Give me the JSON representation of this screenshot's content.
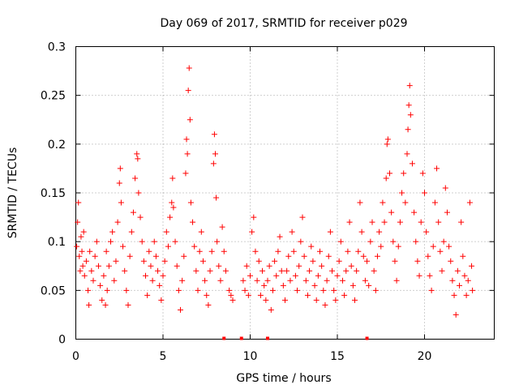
{
  "chart_data": {
    "type": "scatter",
    "title": "Day 069 of 2017, SRMTID for receiver p029",
    "xlabel": "GPS time / hours",
    "ylabel": "SRMTID / TECUs",
    "xlim": [
      0,
      24
    ],
    "ylim": [
      0,
      0.3
    ],
    "x_ticks": [
      0,
      5,
      10,
      15,
      20
    ],
    "x_tick_labels": [
      "0",
      "5",
      "10",
      "15",
      "20"
    ],
    "y_ticks": [
      0,
      0.05,
      0.1,
      0.15,
      0.2,
      0.25,
      0.3
    ],
    "y_tick_labels": [
      "0",
      "0.05",
      "0.1",
      "0.15",
      "0.2",
      "0.25",
      "0.3"
    ],
    "grid": true,
    "marker": "+",
    "color": "#ff0000",
    "series": [
      {
        "name": "SRMTID",
        "points": [
          [
            0.05,
            0.095
          ],
          [
            0.1,
            0.12
          ],
          [
            0.15,
            0.14
          ],
          [
            0.2,
            0.085
          ],
          [
            0.25,
            0.07
          ],
          [
            0.3,
            0.105
          ],
          [
            0.35,
            0.09
          ],
          [
            0.4,
            0.075
          ],
          [
            0.45,
            0.11
          ],
          [
            0.5,
            0.065
          ],
          [
            0.6,
            0.08
          ],
          [
            0.7,
            0.05
          ],
          [
            0.75,
            0.035
          ],
          [
            0.8,
            0.09
          ],
          [
            0.9,
            0.07
          ],
          [
            1.0,
            0.06
          ],
          [
            1.1,
            0.085
          ],
          [
            1.2,
            0.1
          ],
          [
            1.3,
            0.075
          ],
          [
            1.4,
            0.055
          ],
          [
            1.5,
            0.04
          ],
          [
            1.6,
            0.065
          ],
          [
            1.7,
            0.035
          ],
          [
            1.75,
            0.09
          ],
          [
            1.8,
            0.05
          ],
          [
            1.9,
            0.075
          ],
          [
            2.0,
            0.1
          ],
          [
            2.1,
            0.11
          ],
          [
            2.2,
            0.06
          ],
          [
            2.3,
            0.08
          ],
          [
            2.4,
            0.12
          ],
          [
            2.5,
            0.16
          ],
          [
            2.55,
            0.175
          ],
          [
            2.6,
            0.14
          ],
          [
            2.7,
            0.095
          ],
          [
            2.8,
            0.07
          ],
          [
            2.9,
            0.05
          ],
          [
            3.0,
            0.035
          ],
          [
            3.1,
            0.085
          ],
          [
            3.2,
            0.11
          ],
          [
            3.3,
            0.13
          ],
          [
            3.4,
            0.165
          ],
          [
            3.5,
            0.19
          ],
          [
            3.55,
            0.185
          ],
          [
            3.6,
            0.15
          ],
          [
            3.7,
            0.125
          ],
          [
            3.8,
            0.1
          ],
          [
            3.9,
            0.08
          ],
          [
            4.0,
            0.065
          ],
          [
            4.1,
            0.045
          ],
          [
            4.2,
            0.09
          ],
          [
            4.3,
            0.075
          ],
          [
            4.4,
            0.06
          ],
          [
            4.5,
            0.1
          ],
          [
            4.6,
            0.085
          ],
          [
            4.7,
            0.07
          ],
          [
            4.8,
            0.055
          ],
          [
            4.9,
            0.04
          ],
          [
            5.0,
            0.065
          ],
          [
            5.1,
            0.08
          ],
          [
            5.2,
            0.11
          ],
          [
            5.3,
            0.095
          ],
          [
            5.4,
            0.125
          ],
          [
            5.5,
            0.14
          ],
          [
            5.55,
            0.165
          ],
          [
            5.6,
            0.135
          ],
          [
            5.7,
            0.1
          ],
          [
            5.8,
            0.075
          ],
          [
            5.9,
            0.05
          ],
          [
            6.0,
            0.03
          ],
          [
            6.1,
            0.06
          ],
          [
            6.2,
            0.085
          ],
          [
            6.3,
            0.17
          ],
          [
            6.35,
            0.205
          ],
          [
            6.4,
            0.19
          ],
          [
            6.45,
            0.255
          ],
          [
            6.5,
            0.278
          ],
          [
            6.55,
            0.225
          ],
          [
            6.6,
            0.14
          ],
          [
            6.7,
            0.12
          ],
          [
            6.8,
            0.095
          ],
          [
            6.9,
            0.07
          ],
          [
            7.0,
            0.05
          ],
          [
            7.1,
            0.09
          ],
          [
            7.2,
            0.11
          ],
          [
            7.3,
            0.08
          ],
          [
            7.4,
            0.06
          ],
          [
            7.5,
            0.045
          ],
          [
            7.6,
            0.035
          ],
          [
            7.7,
            0.07
          ],
          [
            7.8,
            0.09
          ],
          [
            7.9,
            0.18
          ],
          [
            7.95,
            0.21
          ],
          [
            8.0,
            0.19
          ],
          [
            8.05,
            0.145
          ],
          [
            8.1,
            0.1
          ],
          [
            8.2,
            0.075
          ],
          [
            8.3,
            0.06
          ],
          [
            8.4,
            0.115
          ],
          [
            8.5,
            0.09
          ],
          [
            8.6,
            0.07
          ],
          [
            8.8,
            0.05
          ],
          [
            8.9,
            0.045
          ],
          [
            9.0,
            0.04
          ],
          [
            9.6,
            0.06
          ],
          [
            9.7,
            0.05
          ],
          [
            9.8,
            0.075
          ],
          [
            9.9,
            0.045
          ],
          [
            10.0,
            0.065
          ],
          [
            10.1,
            0.11
          ],
          [
            10.2,
            0.125
          ],
          [
            10.3,
            0.09
          ],
          [
            10.4,
            0.06
          ],
          [
            10.5,
            0.08
          ],
          [
            10.6,
            0.045
          ],
          [
            10.7,
            0.07
          ],
          [
            10.8,
            0.055
          ],
          [
            10.9,
            0.04
          ],
          [
            11.0,
            0.06
          ],
          [
            11.1,
            0.075
          ],
          [
            11.2,
            0.03
          ],
          [
            11.3,
            0.05
          ],
          [
            11.4,
            0.08
          ],
          [
            11.5,
            0.065
          ],
          [
            11.6,
            0.09
          ],
          [
            11.7,
            0.105
          ],
          [
            11.8,
            0.07
          ],
          [
            11.9,
            0.055
          ],
          [
            12.0,
            0.04
          ],
          [
            12.1,
            0.07
          ],
          [
            12.2,
            0.085
          ],
          [
            12.3,
            0.06
          ],
          [
            12.4,
            0.11
          ],
          [
            12.5,
            0.09
          ],
          [
            12.6,
            0.065
          ],
          [
            12.7,
            0.05
          ],
          [
            12.8,
            0.075
          ],
          [
            12.9,
            0.1
          ],
          [
            13.0,
            0.125
          ],
          [
            13.1,
            0.085
          ],
          [
            13.2,
            0.06
          ],
          [
            13.3,
            0.045
          ],
          [
            13.4,
            0.07
          ],
          [
            13.5,
            0.095
          ],
          [
            13.6,
            0.08
          ],
          [
            13.7,
            0.055
          ],
          [
            13.8,
            0.04
          ],
          [
            13.9,
            0.065
          ],
          [
            14.0,
            0.09
          ],
          [
            14.1,
            0.075
          ],
          [
            14.2,
            0.05
          ],
          [
            14.3,
            0.035
          ],
          [
            14.4,
            0.06
          ],
          [
            14.5,
            0.085
          ],
          [
            14.6,
            0.11
          ],
          [
            14.7,
            0.07
          ],
          [
            14.8,
            0.05
          ],
          [
            14.9,
            0.04
          ],
          [
            15.0,
            0.065
          ],
          [
            15.1,
            0.08
          ],
          [
            15.2,
            0.1
          ],
          [
            15.3,
            0.06
          ],
          [
            15.4,
            0.045
          ],
          [
            15.5,
            0.07
          ],
          [
            15.6,
            0.09
          ],
          [
            15.7,
            0.12
          ],
          [
            15.8,
            0.075
          ],
          [
            15.9,
            0.055
          ],
          [
            16.0,
            0.04
          ],
          [
            16.1,
            0.07
          ],
          [
            16.2,
            0.09
          ],
          [
            16.3,
            0.14
          ],
          [
            16.4,
            0.11
          ],
          [
            16.5,
            0.085
          ],
          [
            16.6,
            0.06
          ],
          [
            16.7,
            0.08
          ],
          [
            16.8,
            0.055
          ],
          [
            16.9,
            0.1
          ],
          [
            17.0,
            0.12
          ],
          [
            17.1,
            0.07
          ],
          [
            17.2,
            0.05
          ],
          [
            17.3,
            0.085
          ],
          [
            17.4,
            0.11
          ],
          [
            17.5,
            0.095
          ],
          [
            17.6,
            0.14
          ],
          [
            17.7,
            0.12
          ],
          [
            17.8,
            0.165
          ],
          [
            17.85,
            0.2
          ],
          [
            17.9,
            0.205
          ],
          [
            18.0,
            0.17
          ],
          [
            18.1,
            0.13
          ],
          [
            18.2,
            0.1
          ],
          [
            18.3,
            0.08
          ],
          [
            18.4,
            0.06
          ],
          [
            18.5,
            0.095
          ],
          [
            18.6,
            0.12
          ],
          [
            18.7,
            0.15
          ],
          [
            18.8,
            0.17
          ],
          [
            18.9,
            0.14
          ],
          [
            19.0,
            0.19
          ],
          [
            19.05,
            0.215
          ],
          [
            19.1,
            0.24
          ],
          [
            19.15,
            0.26
          ],
          [
            19.2,
            0.23
          ],
          [
            19.3,
            0.18
          ],
          [
            19.4,
            0.13
          ],
          [
            19.5,
            0.1
          ],
          [
            19.6,
            0.08
          ],
          [
            19.7,
            0.065
          ],
          [
            19.8,
            0.12
          ],
          [
            19.9,
            0.17
          ],
          [
            20.0,
            0.15
          ],
          [
            20.1,
            0.11
          ],
          [
            20.2,
            0.085
          ],
          [
            20.3,
            0.065
          ],
          [
            20.4,
            0.05
          ],
          [
            20.5,
            0.095
          ],
          [
            20.6,
            0.14
          ],
          [
            20.7,
            0.175
          ],
          [
            20.8,
            0.12
          ],
          [
            20.9,
            0.09
          ],
          [
            21.0,
            0.07
          ],
          [
            21.1,
            0.1
          ],
          [
            21.2,
            0.155
          ],
          [
            21.3,
            0.13
          ],
          [
            21.4,
            0.095
          ],
          [
            21.5,
            0.08
          ],
          [
            21.6,
            0.06
          ],
          [
            21.7,
            0.045
          ],
          [
            21.8,
            0.025
          ],
          [
            21.9,
            0.07
          ],
          [
            22.0,
            0.055
          ],
          [
            22.1,
            0.12
          ],
          [
            22.2,
            0.085
          ],
          [
            22.3,
            0.065
          ],
          [
            22.4,
            0.045
          ],
          [
            22.5,
            0.06
          ],
          [
            22.6,
            0.14
          ],
          [
            22.7,
            0.075
          ],
          [
            22.75,
            0.05
          ]
        ]
      }
    ],
    "baseline_markers_x": [
      8.5,
      9.5,
      11.0,
      16.7
    ]
  }
}
